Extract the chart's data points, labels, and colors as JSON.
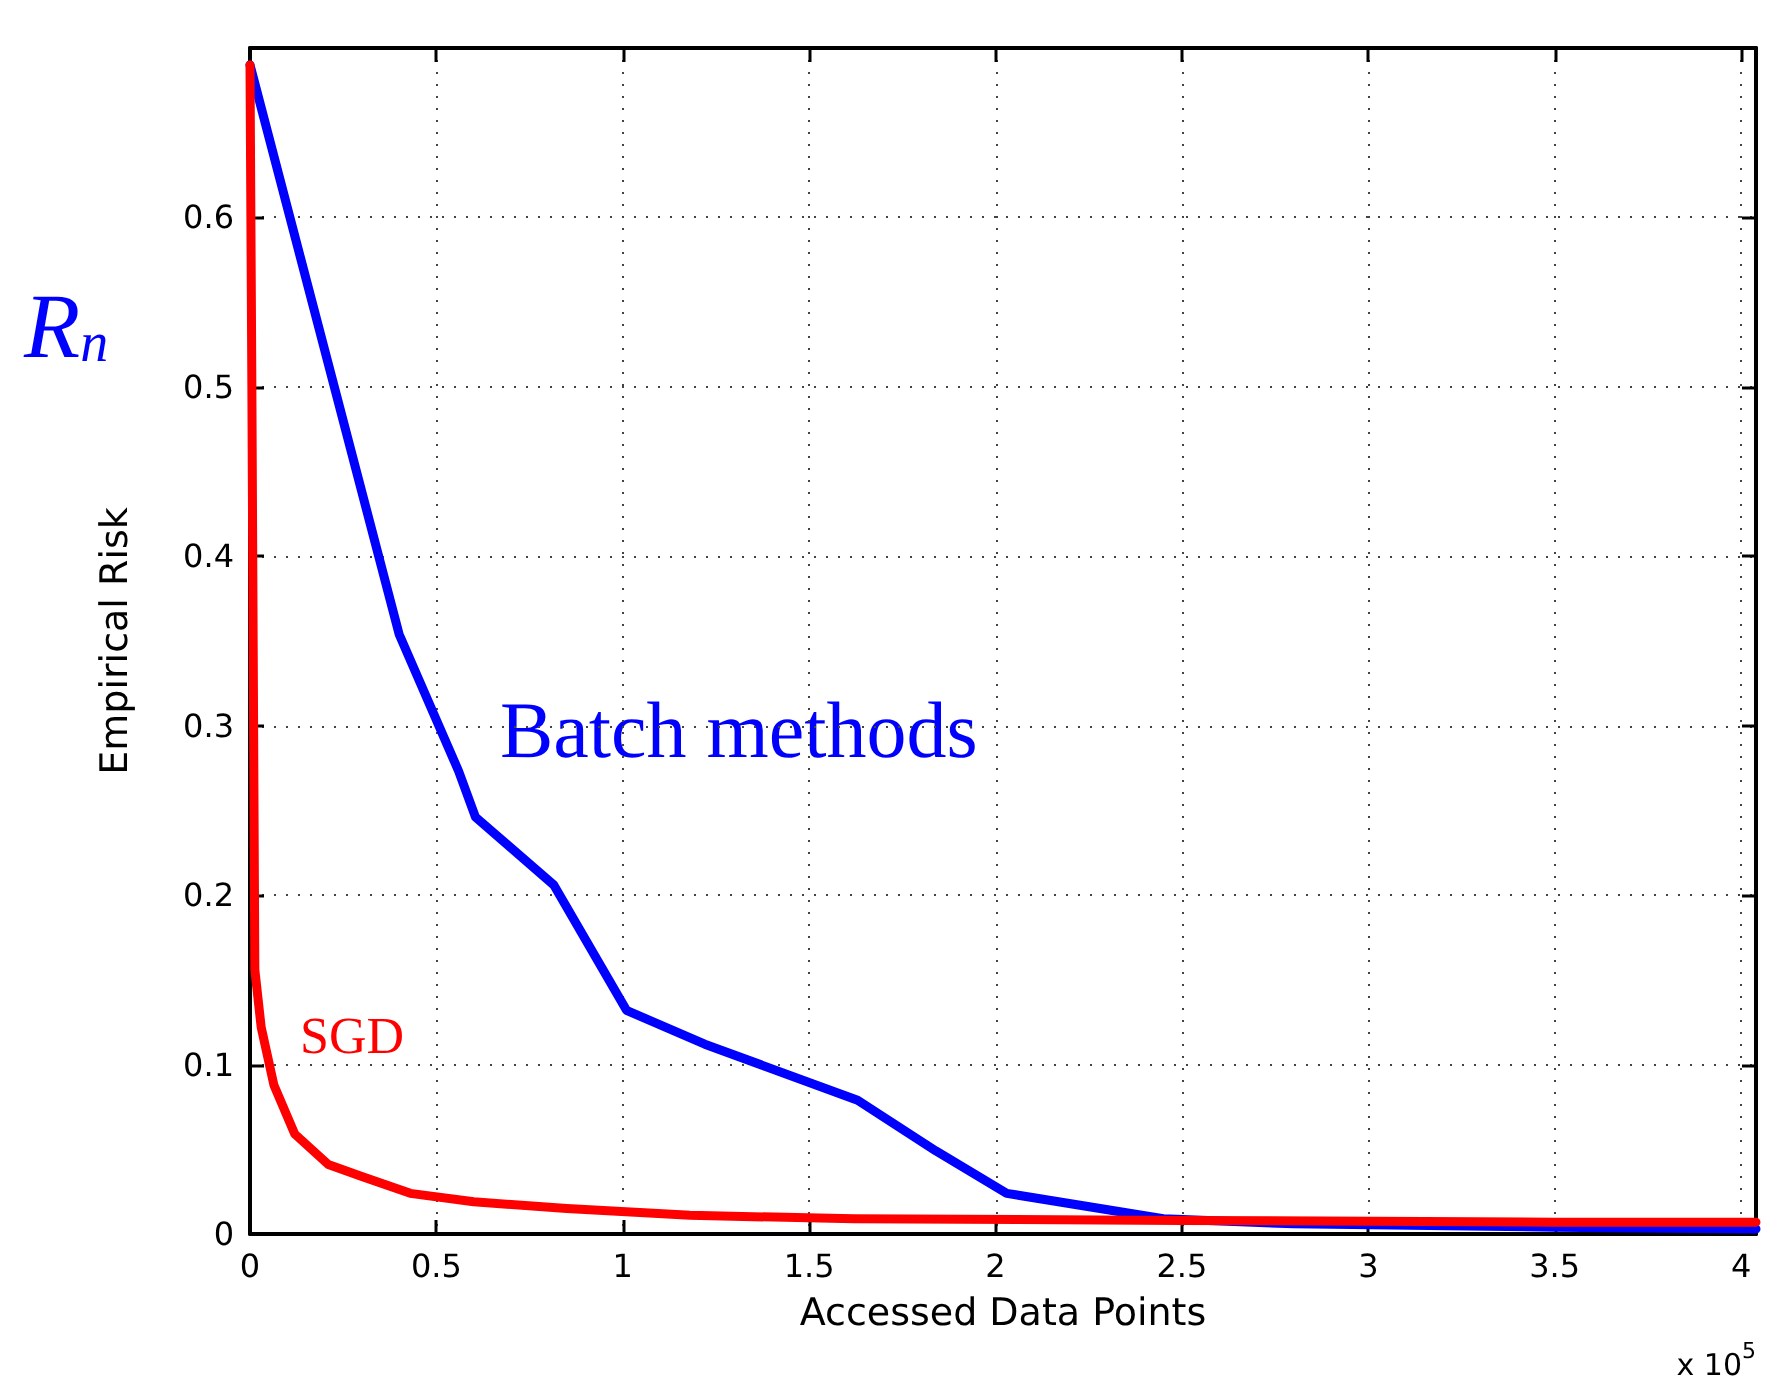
{
  "chart_data": {
    "type": "line",
    "xlabel": "Accessed Data Points",
    "ylabel": "Empirical Risk",
    "annotations": [
      "R$_{n}$",
      "x 10$^{5}$"
    ],
    "xlim": [
      0,
      4.04
    ],
    "xticks": [
      0,
      0.5,
      1,
      1.5,
      2,
      2.5,
      3,
      3.5,
      4
    ],
    "ylim": [
      0,
      0.7
    ],
    "yticks": [
      0,
      0.1,
      0.2,
      0.3,
      0.4,
      0.5,
      0.6
    ],
    "grid": true,
    "legend": false,
    "marker": "none",
    "line_style": "solid",
    "series": [
      {
        "name": "Batch methods",
        "color": "#0000ff",
        "x": [
          0,
          0.4,
          0.56,
          0.605,
          0.815,
          1.01,
          1.22,
          1.63,
          1.84,
          2.03,
          2.45,
          2.8,
          3.5,
          4.04
        ],
        "values": [
          0.69,
          0.354,
          0.273,
          0.246,
          0.206,
          0.132,
          0.112,
          0.079,
          0.049,
          0.024,
          0.009,
          0.006,
          0.004,
          0.003
        ]
      },
      {
        "name": "SGD",
        "color": "#ff0000",
        "x": [
          0,
          0.005,
          0.013,
          0.03,
          0.064,
          0.12,
          0.21,
          0.3,
          0.43,
          0.6,
          0.85,
          1.18,
          1.62,
          2.5,
          3.5,
          4.04
        ],
        "values": [
          0.69,
          0.5,
          0.156,
          0.122,
          0.088,
          0.059,
          0.041,
          0.034,
          0.024,
          0.019,
          0.015,
          0.011,
          0.009,
          0.008,
          0.007,
          0.007
        ]
      }
    ]
  }
}
